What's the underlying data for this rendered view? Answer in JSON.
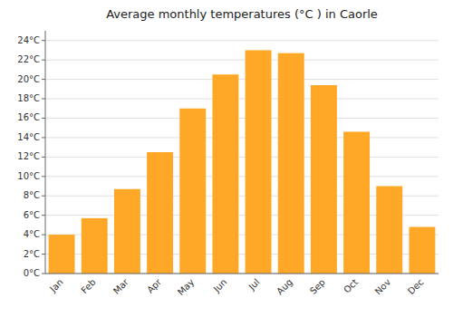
{
  "chart_data": {
    "type": "bar",
    "title": "Average monthly temperatures (°C ) in Caorle",
    "categories": [
      "Jan",
      "Feb",
      "Mar",
      "Apr",
      "May",
      "Jun",
      "Jul",
      "Aug",
      "Sep",
      "Oct",
      "Nov",
      "Dec"
    ],
    "values": [
      4.0,
      5.7,
      8.7,
      12.5,
      17.0,
      20.5,
      23.0,
      22.7,
      19.4,
      14.6,
      9.0,
      4.8
    ],
    "color": "#FFA827",
    "ylim": [
      0,
      25
    ],
    "yticks": [
      {
        "value": 0,
        "label": "0°C"
      },
      {
        "value": 2,
        "label": "2°C"
      },
      {
        "value": 4,
        "label": "4°C"
      },
      {
        "value": 6,
        "label": "6°C"
      },
      {
        "value": 8,
        "label": "8°C"
      },
      {
        "value": 10,
        "label": "10°C"
      },
      {
        "value": 12,
        "label": "12°C"
      },
      {
        "value": 14,
        "label": "14°C"
      },
      {
        "value": 16,
        "label": "16°C"
      },
      {
        "value": 18,
        "label": "18°C"
      },
      {
        "value": 20,
        "label": "20°C"
      },
      {
        "value": 22,
        "label": "22°C"
      },
      {
        "value": 24,
        "label": "24°C"
      }
    ],
    "grid": true
  }
}
